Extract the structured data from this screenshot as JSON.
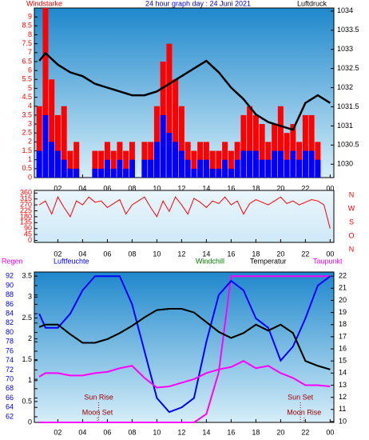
{
  "chart_data": [
    {
      "type": "bar",
      "title": "24 hour graph day : 24 Juni 2021",
      "y_label": "Windstarke",
      "y2_label": "Luftdruck",
      "x": [
        0.5,
        1,
        1.5,
        2,
        2.5,
        3,
        3.5,
        4,
        4.5,
        5,
        5.5,
        6,
        6.5,
        7,
        7.5,
        8,
        8.5,
        9,
        9.5,
        10,
        10.5,
        11,
        11.5,
        12,
        12.5,
        13,
        13.5,
        14,
        14.5,
        15,
        15.5,
        16,
        16.5,
        17,
        17.5,
        18,
        18.5,
        19,
        19.5,
        20,
        20.5,
        21,
        21.5,
        22,
        22.5,
        23,
        23.5,
        24
      ],
      "xlim": [
        0.1,
        24.3
      ],
      "xticks": [
        {
          "value": 2,
          "label": "02"
        },
        {
          "value": 4,
          "label": "04"
        },
        {
          "value": 6,
          "label": "06"
        },
        {
          "value": 8,
          "label": "08"
        },
        10,
        12,
        14,
        16,
        18,
        20,
        22,
        {
          "value": 24,
          "label": "00"
        }
      ],
      "ylim": [
        0,
        9.5
      ],
      "yticks": [
        0,
        0.5,
        1,
        1.5,
        2,
        2.5,
        3,
        3.5,
        4,
        4.5,
        5,
        5.5,
        6,
        6.5,
        7,
        7.5,
        8,
        8.5,
        9
      ],
      "y2lim": [
        1029.65,
        1034.08
      ],
      "y2ticks": [
        1030,
        1030.5,
        1031,
        1031.5,
        1032,
        1032.5,
        1033,
        1033.5,
        1034
      ],
      "series": [
        {
          "color": "#ff0000",
          "values": [
            4,
            9.5,
            5.5,
            3.5,
            4,
            1.5,
            2,
            0,
            0,
            1.5,
            1.5,
            2,
            1.5,
            2,
            1.5,
            2,
            0,
            2,
            2,
            4,
            6.5,
            7.5,
            5.5,
            4,
            2,
            1.5,
            2,
            2,
            1.5,
            1.5,
            2,
            1.5,
            2,
            3.5,
            4,
            3.5,
            3,
            2,
            3,
            4,
            2.5,
            3,
            2,
            3.5,
            3.5,
            2,
            0,
            0
          ]
        },
        {
          "color": "#0000ff",
          "values": [
            1.5,
            3.5,
            2,
            1.5,
            1,
            0.5,
            0.5,
            0,
            0,
            0.5,
            0.5,
            1,
            0.5,
            1,
            0.5,
            1,
            0,
            1,
            1,
            2,
            3.5,
            2.5,
            2,
            1.5,
            1,
            0.5,
            1,
            1,
            0.5,
            0.5,
            1,
            0.5,
            1,
            1.5,
            1.5,
            1.5,
            1,
            1,
            1.5,
            1.5,
            1,
            1.5,
            1,
            1.5,
            1.5,
            1,
            0,
            0
          ]
        },
        {
          "color": "#000000",
          "axis": "y2",
          "x": [
            0.5,
            1,
            2,
            3,
            4,
            5,
            6,
            7,
            8,
            9,
            10,
            11,
            12,
            13,
            14,
            15,
            16,
            17,
            18,
            19,
            20,
            21,
            22,
            23,
            24
          ],
          "values": [
            1032.7,
            1032.9,
            1032.6,
            1032.4,
            1032.3,
            1032.1,
            1032.0,
            1031.9,
            1031.8,
            1031.8,
            1031.9,
            1032.1,
            1032.3,
            1032.5,
            1032.7,
            1032.4,
            1032.0,
            1031.7,
            1031.3,
            1031.1,
            1031.0,
            1030.9,
            1031.6,
            1031.8,
            1031.6
          ]
        }
      ]
    },
    {
      "type": "line",
      "direction_labels": [
        "N",
        "W",
        "S",
        "O",
        "N"
      ],
      "x": [
        0.5,
        1,
        1.5,
        2,
        2.5,
        3,
        3.5,
        4,
        4.5,
        5,
        5.5,
        6,
        6.5,
        7,
        7.5,
        8,
        8.5,
        9,
        9.5,
        10,
        10.5,
        11,
        11.5,
        12,
        12.5,
        13,
        13.5,
        14,
        14.5,
        15,
        15.5,
        16,
        16.5,
        17,
        17.5,
        18,
        18.5,
        19,
        19.5,
        20,
        20.5,
        21,
        21.5,
        22,
        22.5,
        23,
        23.5,
        24
      ],
      "xlim": [
        0.1,
        24.3
      ],
      "xticks": [
        {
          "value": 2,
          "label": "02"
        },
        {
          "value": 4,
          "label": "04"
        },
        {
          "value": 6,
          "label": "06"
        },
        {
          "value": 8,
          "label": "08"
        },
        10,
        12,
        14,
        16,
        18,
        20,
        22,
        {
          "value": 24,
          "label": "00"
        }
      ],
      "ylim": [
        -15,
        380
      ],
      "yticks": [
        0,
        45,
        90,
        135,
        180,
        225,
        270,
        315,
        360
      ],
      "series": [
        {
          "color": "#ff0000",
          "values": [
            270,
            300,
            200,
            330,
            250,
            180,
            300,
            270,
            330,
            290,
            300,
            250,
            280,
            310,
            200,
            270,
            300,
            330,
            250,
            180,
            300,
            220,
            330,
            270,
            200,
            320,
            290,
            250,
            300,
            280,
            330,
            270,
            300,
            200,
            280,
            310,
            290,
            270,
            300,
            330,
            280,
            300,
            270,
            290,
            310,
            300,
            270,
            90
          ]
        }
      ]
    },
    {
      "type": "line",
      "x": [
        0.5,
        1,
        2,
        3,
        4,
        5,
        6,
        7,
        8,
        9,
        10,
        11,
        12,
        13,
        14,
        15,
        16,
        17,
        18,
        19,
        20,
        21,
        22,
        23,
        24
      ],
      "xlim": [
        0.1,
        24.3
      ],
      "xticks": [
        {
          "value": 2,
          "label": "02"
        },
        {
          "value": 4,
          "label": "04"
        },
        {
          "value": 6,
          "label": "06"
        },
        {
          "value": 8,
          "label": "08"
        },
        10,
        12,
        14,
        16,
        18,
        20,
        22,
        {
          "value": 24,
          "label": "00"
        }
      ],
      "ylim": [
        0,
        3.6
      ],
      "yticks": [
        0,
        0.5,
        1,
        1.5,
        2,
        2.5,
        3,
        3.5
      ],
      "y3lim": [
        60.8,
        92.9
      ],
      "y3ticks": [
        62,
        64,
        66,
        68,
        70,
        72,
        74,
        76,
        78,
        80,
        82,
        84,
        86,
        88,
        90,
        92
      ],
      "y2lim": [
        9.93,
        22.34
      ],
      "y2ticks": [
        10,
        11,
        12,
        13,
        14,
        15,
        16,
        17,
        18,
        19,
        20,
        21,
        22
      ],
      "series": [
        {
          "name": "Regen",
          "color": "#ff00ff",
          "axis": "y",
          "values": [
            0,
            0,
            0,
            0,
            0,
            0,
            0,
            0,
            0,
            0,
            0,
            0,
            0,
            0,
            0.2,
            1.2,
            3.5,
            3.5,
            3.5,
            3.5,
            3.5,
            3.5,
            3.5,
            3.5,
            3.5
          ]
        },
        {
          "name": "Luftfeuchte",
          "color": "#0000ff",
          "axis": "y3",
          "values": [
            84,
            81,
            81,
            84,
            89,
            92,
            92,
            92,
            86,
            76,
            66,
            63,
            64,
            66,
            78,
            88,
            91,
            89,
            83,
            81,
            74,
            77,
            83,
            90,
            92
          ]
        },
        {
          "name": "Windchill",
          "color": "#008000",
          "axis": "y2",
          "values": [
            17.8,
            18,
            18,
            17.2,
            16.5,
            16.5,
            16.8,
            17.3,
            17.9,
            18.6,
            19.2,
            19.3,
            19.3,
            19,
            18.2,
            17.4,
            16.9,
            17.3,
            18,
            17.5,
            18,
            17.3,
            15,
            14.6,
            14.3
          ]
        },
        {
          "name": "Temperatur",
          "color": "#000000",
          "axis": "y2",
          "values": [
            17.8,
            18,
            18,
            17.2,
            16.5,
            16.5,
            16.8,
            17.3,
            17.9,
            18.6,
            19.2,
            19.3,
            19.3,
            19,
            18.2,
            17.4,
            16.9,
            17.3,
            18,
            17.5,
            18,
            17.3,
            15,
            14.6,
            14.3
          ]
        },
        {
          "name": "Taupunkt",
          "color": "#ff00ff",
          "axis": "y2",
          "values": [
            13.7,
            14,
            14,
            13.8,
            13.8,
            14,
            14.1,
            14.4,
            14.6,
            13.6,
            12.8,
            12.9,
            13.2,
            13.5,
            14,
            14.3,
            14.5,
            15,
            14.4,
            14.6,
            14,
            13.6,
            13,
            13,
            12.9
          ]
        }
      ],
      "annotations": [
        {
          "text": "Sun Rise",
          "x": 5.3
        },
        {
          "text": "Moon Set",
          "x": 5.2
        },
        {
          "text": "Sun Set",
          "x": 21.6
        },
        {
          "text": "Moon Rise",
          "x": 21.9
        }
      ]
    }
  ]
}
